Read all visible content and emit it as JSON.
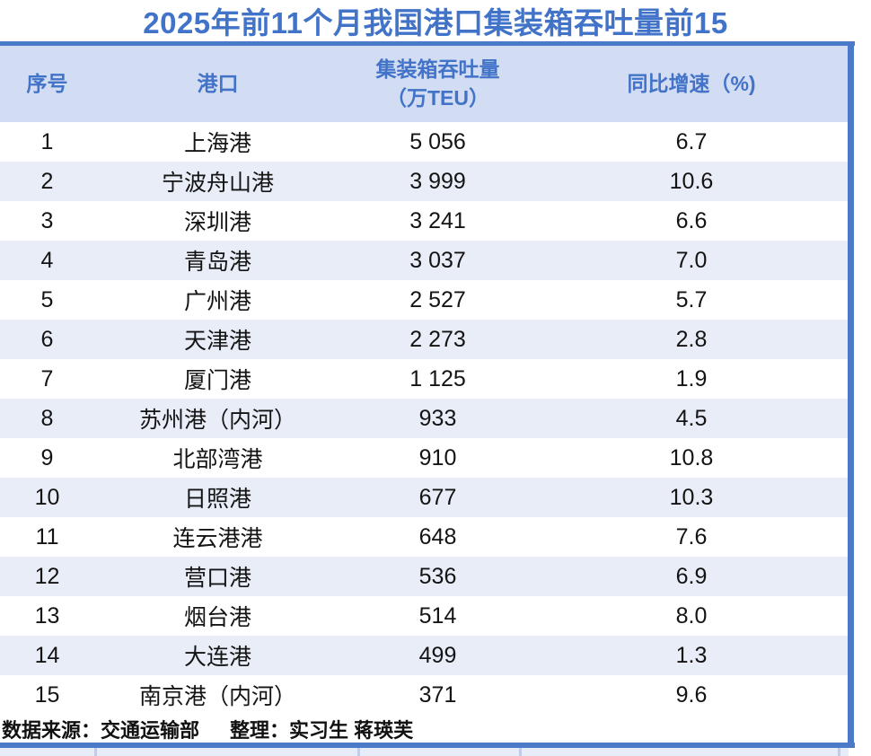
{
  "title": "2025年前11个月我国港口集装箱吞吐量前15",
  "colors": {
    "accent_blue": "#4273C8",
    "rule_blue": "#4B7BC8",
    "header_bg": "#D2DCF2",
    "row_alt_bg": "#E9EDF8",
    "strip_bg": "#E7EDF8",
    "text": "#141414"
  },
  "table": {
    "headers": {
      "rank": "序号",
      "port": "港口",
      "throughput_line1": "集装箱吞吐量",
      "throughput_line2": "（万TEU）",
      "growth": "同比增速（%)"
    },
    "rows": [
      {
        "rank": "1",
        "port": "上海港",
        "throughput": "5 056",
        "growth": "6.7"
      },
      {
        "rank": "2",
        "port": "宁波舟山港",
        "throughput": "3 999",
        "growth": "10.6"
      },
      {
        "rank": "3",
        "port": "深圳港",
        "throughput": "3 241",
        "growth": "6.6"
      },
      {
        "rank": "4",
        "port": "青岛港",
        "throughput": "3 037",
        "growth": "7.0"
      },
      {
        "rank": "5",
        "port": "广州港",
        "throughput": "2 527",
        "growth": "5.7"
      },
      {
        "rank": "6",
        "port": "天津港",
        "throughput": "2 273",
        "growth": "2.8"
      },
      {
        "rank": "7",
        "port": "厦门港",
        "throughput": "1 125",
        "growth": "1.9"
      },
      {
        "rank": "8",
        "port": "苏州港（内河）",
        "throughput": "933",
        "growth": "4.5"
      },
      {
        "rank": "9",
        "port": "北部湾港",
        "throughput": "910",
        "growth": "10.8"
      },
      {
        "rank": "10",
        "port": "日照港",
        "throughput": "677",
        "growth": "10.3"
      },
      {
        "rank": "11",
        "port": "连云港港",
        "throughput": "648",
        "growth": "7.6"
      },
      {
        "rank": "12",
        "port": "营口港",
        "throughput": "536",
        "growth": "6.9"
      },
      {
        "rank": "13",
        "port": "烟台港",
        "throughput": "514",
        "growth": "8.0"
      },
      {
        "rank": "14",
        "port": "大连港",
        "throughput": "499",
        "growth": "1.3"
      },
      {
        "rank": "15",
        "port": "南京港（内河）",
        "throughput": "371",
        "growth": "9.6"
      }
    ]
  },
  "footer": {
    "source": "数据来源：交通运输部",
    "credit": "整理：实习生 蒋瑛芙"
  },
  "chart_data": {
    "type": "table",
    "title": "2025年前11个月我国港口集装箱吞吐量前15",
    "columns": [
      "序号",
      "港口",
      "集装箱吞吐量（万TEU）",
      "同比增速（%)"
    ],
    "rows": [
      [
        1,
        "上海港",
        5056,
        6.7
      ],
      [
        2,
        "宁波舟山港",
        3999,
        10.6
      ],
      [
        3,
        "深圳港",
        3241,
        6.6
      ],
      [
        4,
        "青岛港",
        3037,
        7.0
      ],
      [
        5,
        "广州港",
        2527,
        5.7
      ],
      [
        6,
        "天津港",
        2273,
        2.8
      ],
      [
        7,
        "厦门港",
        1125,
        1.9
      ],
      [
        8,
        "苏州港（内河）",
        933,
        4.5
      ],
      [
        9,
        "北部湾港",
        910,
        10.8
      ],
      [
        10,
        "日照港",
        677,
        10.3
      ],
      [
        11,
        "连云港港",
        648,
        7.6
      ],
      [
        12,
        "营口港",
        536,
        6.9
      ],
      [
        13,
        "烟台港",
        514,
        8.0
      ],
      [
        14,
        "大连港",
        499,
        1.3
      ],
      [
        15,
        "南京港（内河）",
        371,
        9.6
      ]
    ],
    "notes": "throughput unit: 万TEU; growth unit: % YoY; source: 交通运输部"
  }
}
